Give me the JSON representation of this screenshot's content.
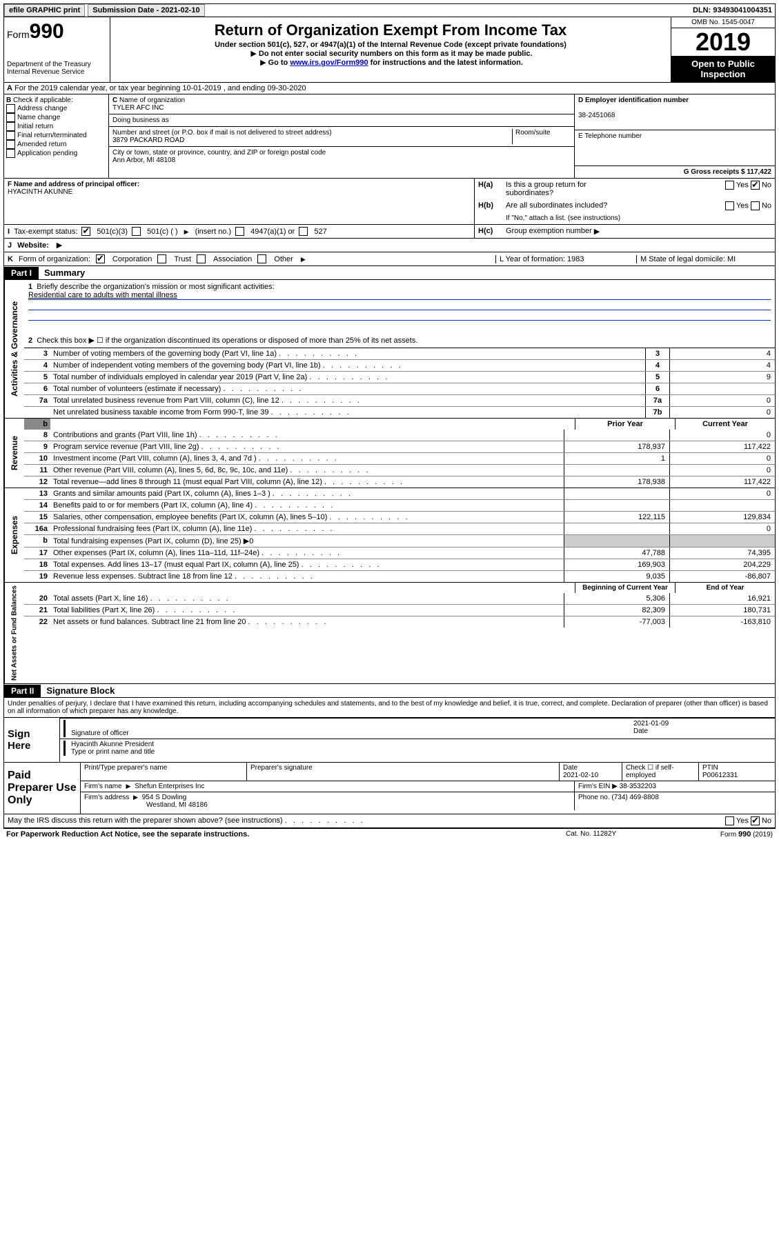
{
  "topbar": {
    "efile": "efile GRAPHIC print",
    "submission_label": "Submission Date - 2021-02-10",
    "dln": "DLN: 93493041004351"
  },
  "header": {
    "form_label": "Form",
    "form_num": "990",
    "dept": "Department of the Treasury",
    "irs": "Internal Revenue Service",
    "title": "Return of Organization Exempt From Income Tax",
    "subtitle": "Under section 501(c), 527, or 4947(a)(1) of the Internal Revenue Code (except private foundations)",
    "note1": "Do not enter social security numbers on this form as it may be made public.",
    "note2_pre": "Go to ",
    "note2_link": "www.irs.gov/Form990",
    "note2_post": " for instructions and the latest information.",
    "omb": "OMB No. 1545-0047",
    "year": "2019",
    "open": "Open to Public Inspection"
  },
  "row_a": "For the 2019 calendar year, or tax year beginning 10-01-2019    , and ending 09-30-2020",
  "col_b": {
    "label": "Check if applicable:",
    "opts": [
      "Address change",
      "Name change",
      "Initial return",
      "Final return/terminated",
      "Amended return",
      "Application pending"
    ]
  },
  "col_c": {
    "name_label": "Name of organization",
    "name": "TYLER AFC INC",
    "dba_label": "Doing business as",
    "addr_label": "Number and street (or P.O. box if mail is not delivered to street address)",
    "room_label": "Room/suite",
    "addr": "3879 PACKARD ROAD",
    "city_label": "City or town, state or province, country, and ZIP or foreign postal code",
    "city": "Ann Arbor, MI  48108"
  },
  "col_d": {
    "ein_label": "D Employer identification number",
    "ein": "38-2451068",
    "phone_label": "E Telephone number",
    "gross_label": "G Gross receipts $ 117,422"
  },
  "officer": {
    "label": "F  Name and address of principal officer:",
    "name": "HYACINTH AKUNNE",
    "ha": "Is this a group return for",
    "ha2": "subordinates?",
    "hb": "Are all subordinates included?",
    "hb_note": "If \"No,\" attach a list. (see instructions)",
    "hc": "Group exemption number",
    "yes": "Yes",
    "no": "No"
  },
  "tax_status": {
    "label": "Tax-exempt status:",
    "opt1": "501(c)(3)",
    "opt2": "501(c) (  )",
    "opt2_note": "(insert no.)",
    "opt3": "4947(a)(1) or",
    "opt4": "527"
  },
  "website_label": "Website:",
  "k_row": {
    "label": "Form of organization:",
    "opts": [
      "Corporation",
      "Trust",
      "Association",
      "Other"
    ],
    "year_label": "L Year of formation: 1983",
    "state_label": "M State of legal domicile: MI"
  },
  "part1": {
    "label": "Part I",
    "title": "Summary",
    "mission_label": "Briefly describe the organization's mission or most significant activities:",
    "mission": "Residential care to adults with mental illness",
    "line2": "Check this box ▶ ☐  if the organization discontinued its operations or disposed of more than 25% of its net assets.",
    "prior": "Prior Year",
    "current": "Current Year",
    "begin": "Beginning of Current Year",
    "end": "End of Year"
  },
  "gov_lines": [
    {
      "n": "3",
      "t": "Number of voting members of the governing body (Part VI, line 1a)",
      "box": "3",
      "v": "4"
    },
    {
      "n": "4",
      "t": "Number of independent voting members of the governing body (Part VI, line 1b)",
      "box": "4",
      "v": "4"
    },
    {
      "n": "5",
      "t": "Total number of individuals employed in calendar year 2019 (Part V, line 2a)",
      "box": "5",
      "v": "9"
    },
    {
      "n": "6",
      "t": "Total number of volunteers (estimate if necessary)",
      "box": "6",
      "v": ""
    },
    {
      "n": "7a",
      "t": "Total unrelated business revenue from Part VIII, column (C), line 12",
      "box": "7a",
      "v": "0"
    },
    {
      "n": "",
      "t": "Net unrelated business taxable income from Form 990-T, line 39",
      "box": "7b",
      "v": "0"
    }
  ],
  "rev_lines": [
    {
      "n": "8",
      "t": "Contributions and grants (Part VIII, line 1h)",
      "p": "",
      "c": "0"
    },
    {
      "n": "9",
      "t": "Program service revenue (Part VIII, line 2g)",
      "p": "178,937",
      "c": "117,422"
    },
    {
      "n": "10",
      "t": "Investment income (Part VIII, column (A), lines 3, 4, and 7d )",
      "p": "1",
      "c": "0"
    },
    {
      "n": "11",
      "t": "Other revenue (Part VIII, column (A), lines 5, 6d, 8c, 9c, 10c, and 11e)",
      "p": "",
      "c": "0"
    },
    {
      "n": "12",
      "t": "Total revenue—add lines 8 through 11 (must equal Part VIII, column (A), line 12)",
      "p": "178,938",
      "c": "117,422"
    }
  ],
  "exp_lines": [
    {
      "n": "13",
      "t": "Grants and similar amounts paid (Part IX, column (A), lines 1–3 )",
      "p": "",
      "c": "0"
    },
    {
      "n": "14",
      "t": "Benefits paid to or for members (Part IX, column (A), line 4)",
      "p": "",
      "c": ""
    },
    {
      "n": "15",
      "t": "Salaries, other compensation, employee benefits (Part IX, column (A), lines 5–10)",
      "p": "122,115",
      "c": "129,834"
    },
    {
      "n": "16a",
      "t": "Professional fundraising fees (Part IX, column (A), line 11e)",
      "p": "",
      "c": "0"
    },
    {
      "n": "b",
      "t": "Total fundraising expenses (Part IX, column (D), line 25) ▶0",
      "p": "shaded",
      "c": "shaded"
    },
    {
      "n": "17",
      "t": "Other expenses (Part IX, column (A), lines 11a–11d, 11f–24e)",
      "p": "47,788",
      "c": "74,395"
    },
    {
      "n": "18",
      "t": "Total expenses. Add lines 13–17 (must equal Part IX, column (A), line 25)",
      "p": "169,903",
      "c": "204,229"
    },
    {
      "n": "19",
      "t": "Revenue less expenses. Subtract line 18 from line 12",
      "p": "9,035",
      "c": "-86,807"
    }
  ],
  "net_lines": [
    {
      "n": "20",
      "t": "Total assets (Part X, line 16)",
      "p": "5,306",
      "c": "16,921"
    },
    {
      "n": "21",
      "t": "Total liabilities (Part X, line 26)",
      "p": "82,309",
      "c": "180,731"
    },
    {
      "n": "22",
      "t": "Net assets or fund balances. Subtract line 21 from line 20",
      "p": "-77,003",
      "c": "-163,810"
    }
  ],
  "part2": {
    "label": "Part II",
    "title": "Signature Block",
    "perjury": "Under penalties of perjury, I declare that I have examined this return, including accompanying schedules and statements, and to the best of my knowledge and belief, it is true, correct, and complete. Declaration of preparer (other than officer) is based on all information of which preparer has any knowledge.",
    "sign_here": "Sign Here",
    "sig_officer": "Signature of officer",
    "sig_date": "2021-01-09",
    "date_label": "Date",
    "printed": "Hyacinth Akunne  President",
    "printed_label": "Type or print name and title",
    "paid": "Paid Preparer Use Only",
    "prep_name_label": "Print/Type preparer's name",
    "prep_sig_label": "Preparer's signature",
    "prep_date_label": "Date",
    "prep_date": "2021-02-10",
    "check_label": "Check ☐ if self-employed",
    "ptin_label": "PTIN",
    "ptin": "P00612331",
    "firm_name_label": "Firm's name",
    "firm_name": "Shefun Enterprises Inc",
    "firm_ein_label": "Firm's EIN ▶ 38-3532203",
    "firm_addr_label": "Firm's address",
    "firm_addr": "954 S Dowling",
    "firm_city": "Westland, MI  48186",
    "phone_label": "Phone no. (734) 469-8808",
    "discuss": "May the IRS discuss this return with the preparer shown above? (see instructions)"
  },
  "footer": {
    "pra": "For Paperwork Reduction Act Notice, see the separate instructions.",
    "cat": "Cat. No. 11282Y",
    "form": "Form 990 (2019)"
  },
  "sides": {
    "gov": "Activities & Governance",
    "rev": "Revenue",
    "exp": "Expenses",
    "net": "Net Assets or Fund Balances"
  }
}
